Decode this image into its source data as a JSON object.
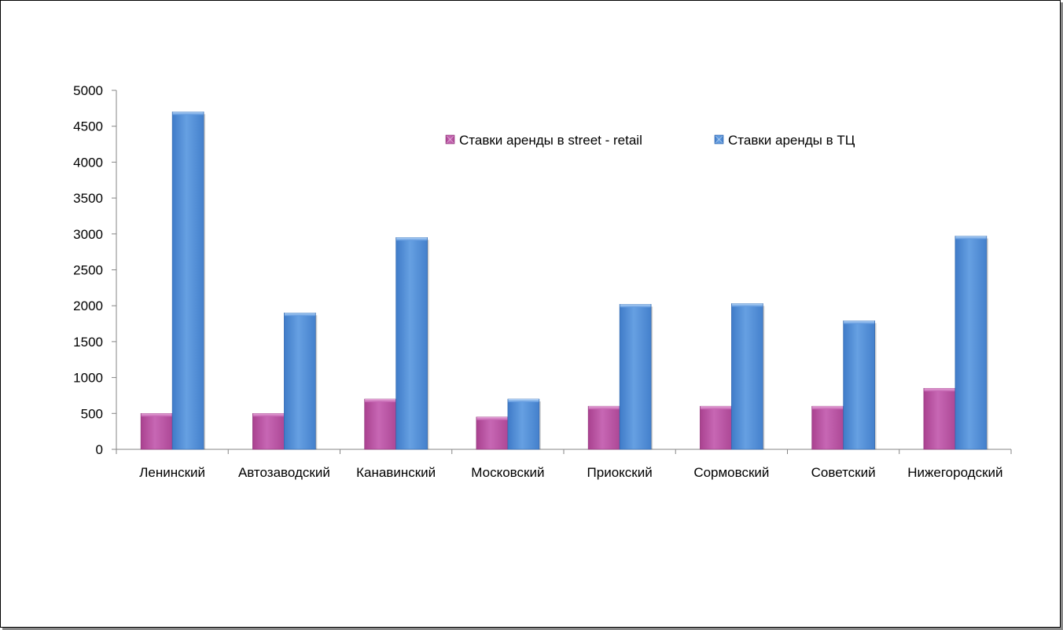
{
  "chart_data": {
    "type": "bar",
    "categories": [
      "Ленинский",
      "Автозаводский",
      "Канавинский",
      "Московский",
      "Приокский",
      "Сормовский",
      "Советский",
      "Нижегородский"
    ],
    "series": [
      {
        "name": "Ставки аренды в street - retail",
        "color": "#c25fae",
        "values": [
          500,
          500,
          700,
          450,
          600,
          600,
          600,
          850
        ]
      },
      {
        "name": "Ставки аренды в ТЦ",
        "color": "#5b95dc",
        "values": [
          4700,
          1900,
          2950,
          700,
          2020,
          2030,
          1790,
          2970
        ]
      }
    ],
    "yticks": [
      0,
      500,
      1000,
      1500,
      2000,
      2500,
      3000,
      3500,
      4000,
      4500,
      5000
    ],
    "ylim": [
      0,
      5000
    ],
    "legend_position": "top-center",
    "grid": false
  }
}
